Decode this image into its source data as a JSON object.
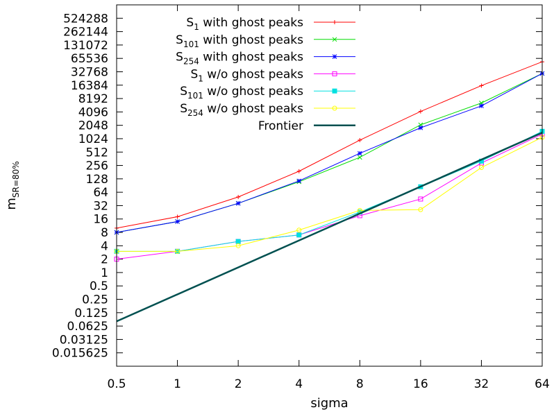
{
  "chart_data": {
    "type": "line",
    "xlabel": "sigma",
    "ylabel_main": "m",
    "ylabel_sub": "SR=80%",
    "x_scale": "log2",
    "y_scale": "log2",
    "xlim": [
      0.5,
      64
    ],
    "ylim": [
      0.0078125,
      1048576
    ],
    "x_ticks": [
      0.5,
      1,
      2,
      4,
      8,
      16,
      32,
      64
    ],
    "x_tick_labels": [
      "0.5",
      "1",
      "2",
      "4",
      "8",
      "16",
      "32",
      "64"
    ],
    "y_ticks": [
      0.015625,
      0.03125,
      0.0625,
      0.125,
      0.25,
      0.5,
      1,
      2,
      4,
      8,
      16,
      32,
      64,
      128,
      256,
      512,
      1024,
      2048,
      4096,
      8192,
      16384,
      32768,
      65536,
      131072,
      262144,
      524288
    ],
    "y_tick_labels": [
      "0.015625",
      "0.03125",
      "0.0625",
      "0.125",
      "0.25",
      "0.5",
      "1",
      "2",
      "4",
      "8",
      "16",
      "32",
      "64",
      "128",
      "256",
      "512",
      "1024",
      "2048",
      "4096",
      "8192",
      "16384",
      "32768",
      "65536",
      "131072",
      "262144",
      "524288"
    ],
    "legend_position": "top-left",
    "grid": false,
    "series": [
      {
        "name_main": "S",
        "name_sub": "1",
        "name_rest": " with ghost peaks",
        "color": "#ff0000",
        "marker": "plus",
        "x": [
          0.5,
          1,
          2,
          4,
          8,
          16,
          32,
          64
        ],
        "y": [
          10,
          18,
          50,
          190,
          950,
          4200,
          16000,
          55000
        ]
      },
      {
        "name_main": "S",
        "name_sub": "101",
        "name_rest": " with ghost peaks",
        "color": "#00dd00",
        "marker": "cross",
        "x": [
          0.5,
          1,
          2,
          4,
          8,
          16,
          32,
          64
        ],
        "y": [
          8,
          14,
          36,
          110,
          390,
          2100,
          6500,
          30000
        ]
      },
      {
        "name_main": "S",
        "name_sub": "254",
        "name_rest": " with ghost peaks",
        "color": "#0000ff",
        "marker": "star",
        "x": [
          0.5,
          1,
          2,
          4,
          8,
          16,
          32,
          64
        ],
        "y": [
          8,
          14,
          36,
          115,
          480,
          1800,
          5600,
          30000
        ]
      },
      {
        "name_main": "S",
        "name_sub": "1",
        "name_rest": " w/o ghost peaks",
        "color": "#ff00ff",
        "marker": "box",
        "x": [
          0.5,
          1,
          2,
          4,
          8,
          16,
          32,
          64
        ],
        "y": [
          2,
          3,
          5,
          7,
          19,
          45,
          290,
          1300
        ]
      },
      {
        "name_main": "S",
        "name_sub": "101",
        "name_rest": " w/o ghost peaks",
        "color": "#00e0e0",
        "marker": "filledbox",
        "x": [
          0.5,
          1,
          2,
          4,
          8,
          16,
          32,
          64
        ],
        "y": [
          3,
          3,
          5,
          7,
          23,
          85,
          320,
          1500
        ]
      },
      {
        "name_main": "S",
        "name_sub": "254",
        "name_rest": " w/o ghost peaks",
        "color": "#ffff00",
        "marker": "circle",
        "x": [
          0.5,
          1,
          2,
          4,
          8,
          16,
          32,
          64
        ],
        "y": [
          3,
          3,
          4,
          9,
          25,
          26,
          230,
          1100
        ]
      },
      {
        "name_main": "Frontier",
        "name_sub": "",
        "name_rest": "",
        "color": "#005050",
        "marker": "none",
        "line_width": 2.5,
        "x": [
          0.5,
          64
        ],
        "y": [
          0.08,
          1400
        ]
      }
    ]
  }
}
